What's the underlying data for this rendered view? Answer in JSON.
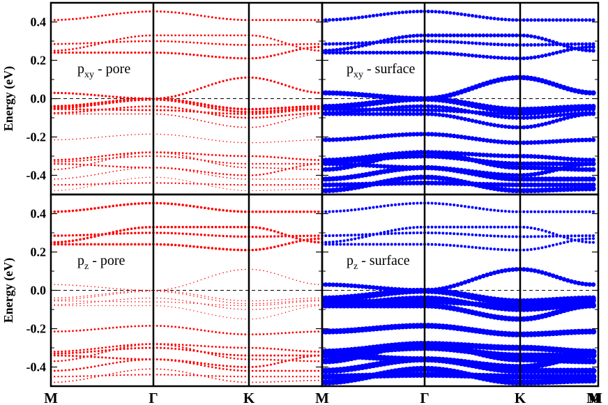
{
  "chart_data": [
    {
      "type": "scatter",
      "panel": "top-left",
      "label": {
        "main": "p",
        "sub": "xy",
        "rest": " - pore"
      },
      "ylabel": "Energy (eV)",
      "xticks": [
        "M",
        "Γ",
        "K",
        "M"
      ],
      "yticks": [
        "0.4",
        "0.2",
        "0.0",
        "-0.2",
        "-0.4"
      ],
      "ylim": [
        -0.5,
        0.5
      ],
      "fermi_level": 0.0,
      "color": "#ff0000",
      "weights": [
        3.0,
        2.8,
        2.8,
        3.2,
        3.2,
        3.6,
        3.4,
        3.0,
        2.8,
        2.0,
        1.6,
        2.8,
        2.4,
        2.6,
        2.2,
        1.8,
        2.4,
        1.4
      ]
    },
    {
      "type": "scatter",
      "panel": "top-right",
      "label": {
        "main": "p",
        "sub": "xy",
        "rest": " - surface"
      },
      "xticks": [
        "M",
        "Γ",
        "K",
        "M"
      ],
      "ylim": [
        -0.5,
        0.5
      ],
      "fermi_level": 0.0,
      "color": "#0000ff",
      "weights": [
        5.0,
        5.0,
        5.5,
        5.5,
        7.5,
        7.0,
        6.5,
        6.0,
        6.0,
        6.0,
        6.5,
        6.5,
        7.0,
        6.5,
        7.0,
        7.5,
        7.0,
        7.5
      ]
    },
    {
      "type": "scatter",
      "panel": "bottom-left",
      "label": {
        "main": "p",
        "sub": "z",
        "rest": " - pore"
      },
      "ylabel": "Energy (eV)",
      "xticks": [
        "M",
        "Γ",
        "K",
        "M"
      ],
      "yticks": [
        "0.4",
        "0.2",
        "0.0",
        "-0.2",
        "-0.4"
      ],
      "ylim": [
        -0.5,
        0.5
      ],
      "fermi_level": 0.0,
      "color": "#ff0000",
      "weights": [
        3.6,
        3.4,
        3.6,
        3.6,
        1.6,
        1.6,
        1.6,
        1.6,
        1.6,
        1.4,
        2.8,
        2.8,
        3.0,
        3.0,
        2.6,
        2.8,
        2.4,
        2.0
      ]
    },
    {
      "type": "scatter",
      "panel": "bottom-right",
      "label": {
        "main": "p",
        "sub": "z",
        "rest": " - surface"
      },
      "xticks": [
        "M",
        "Γ",
        "K",
        "M"
      ],
      "ylim": [
        -0.5,
        0.5
      ],
      "fermi_level": 0.0,
      "color": "#0000ff",
      "weights": [
        4.0,
        4.0,
        4.0,
        4.0,
        6.5,
        7.5,
        7.5,
        7.5,
        7.5,
        8.0,
        8.5,
        9.0,
        9.0,
        9.0,
        9.0,
        9.0,
        9.0,
        9.0
      ]
    }
  ],
  "bands": [
    [
      0.41,
      0.455,
      0.41,
      0.41
    ],
    [
      0.285,
      0.3,
      0.28,
      0.285
    ],
    [
      0.25,
      0.33,
      0.33,
      0.25
    ],
    [
      0.24,
      0.24,
      0.21,
      0.27
    ],
    [
      0.03,
      0.0,
      0.11,
      0.03
    ],
    [
      -0.04,
      0.0,
      -0.055,
      -0.04
    ],
    [
      -0.05,
      -0.005,
      -0.07,
      -0.05
    ],
    [
      -0.055,
      -0.06,
      -0.08,
      -0.055
    ],
    [
      -0.075,
      -0.04,
      -0.1,
      -0.075
    ],
    [
      -0.08,
      -0.08,
      -0.15,
      -0.08
    ],
    [
      -0.215,
      -0.185,
      -0.23,
      -0.215
    ],
    [
      -0.32,
      -0.28,
      -0.3,
      -0.32
    ],
    [
      -0.33,
      -0.3,
      -0.34,
      -0.34
    ],
    [
      -0.34,
      -0.36,
      -0.4,
      -0.34
    ],
    [
      -0.37,
      -0.28,
      -0.36,
      -0.37
    ],
    [
      -0.42,
      -0.36,
      -0.42,
      -0.42
    ],
    [
      -0.45,
      -0.44,
      -0.45,
      -0.45
    ],
    [
      -0.48,
      -0.41,
      -0.48,
      -0.47
    ]
  ]
}
